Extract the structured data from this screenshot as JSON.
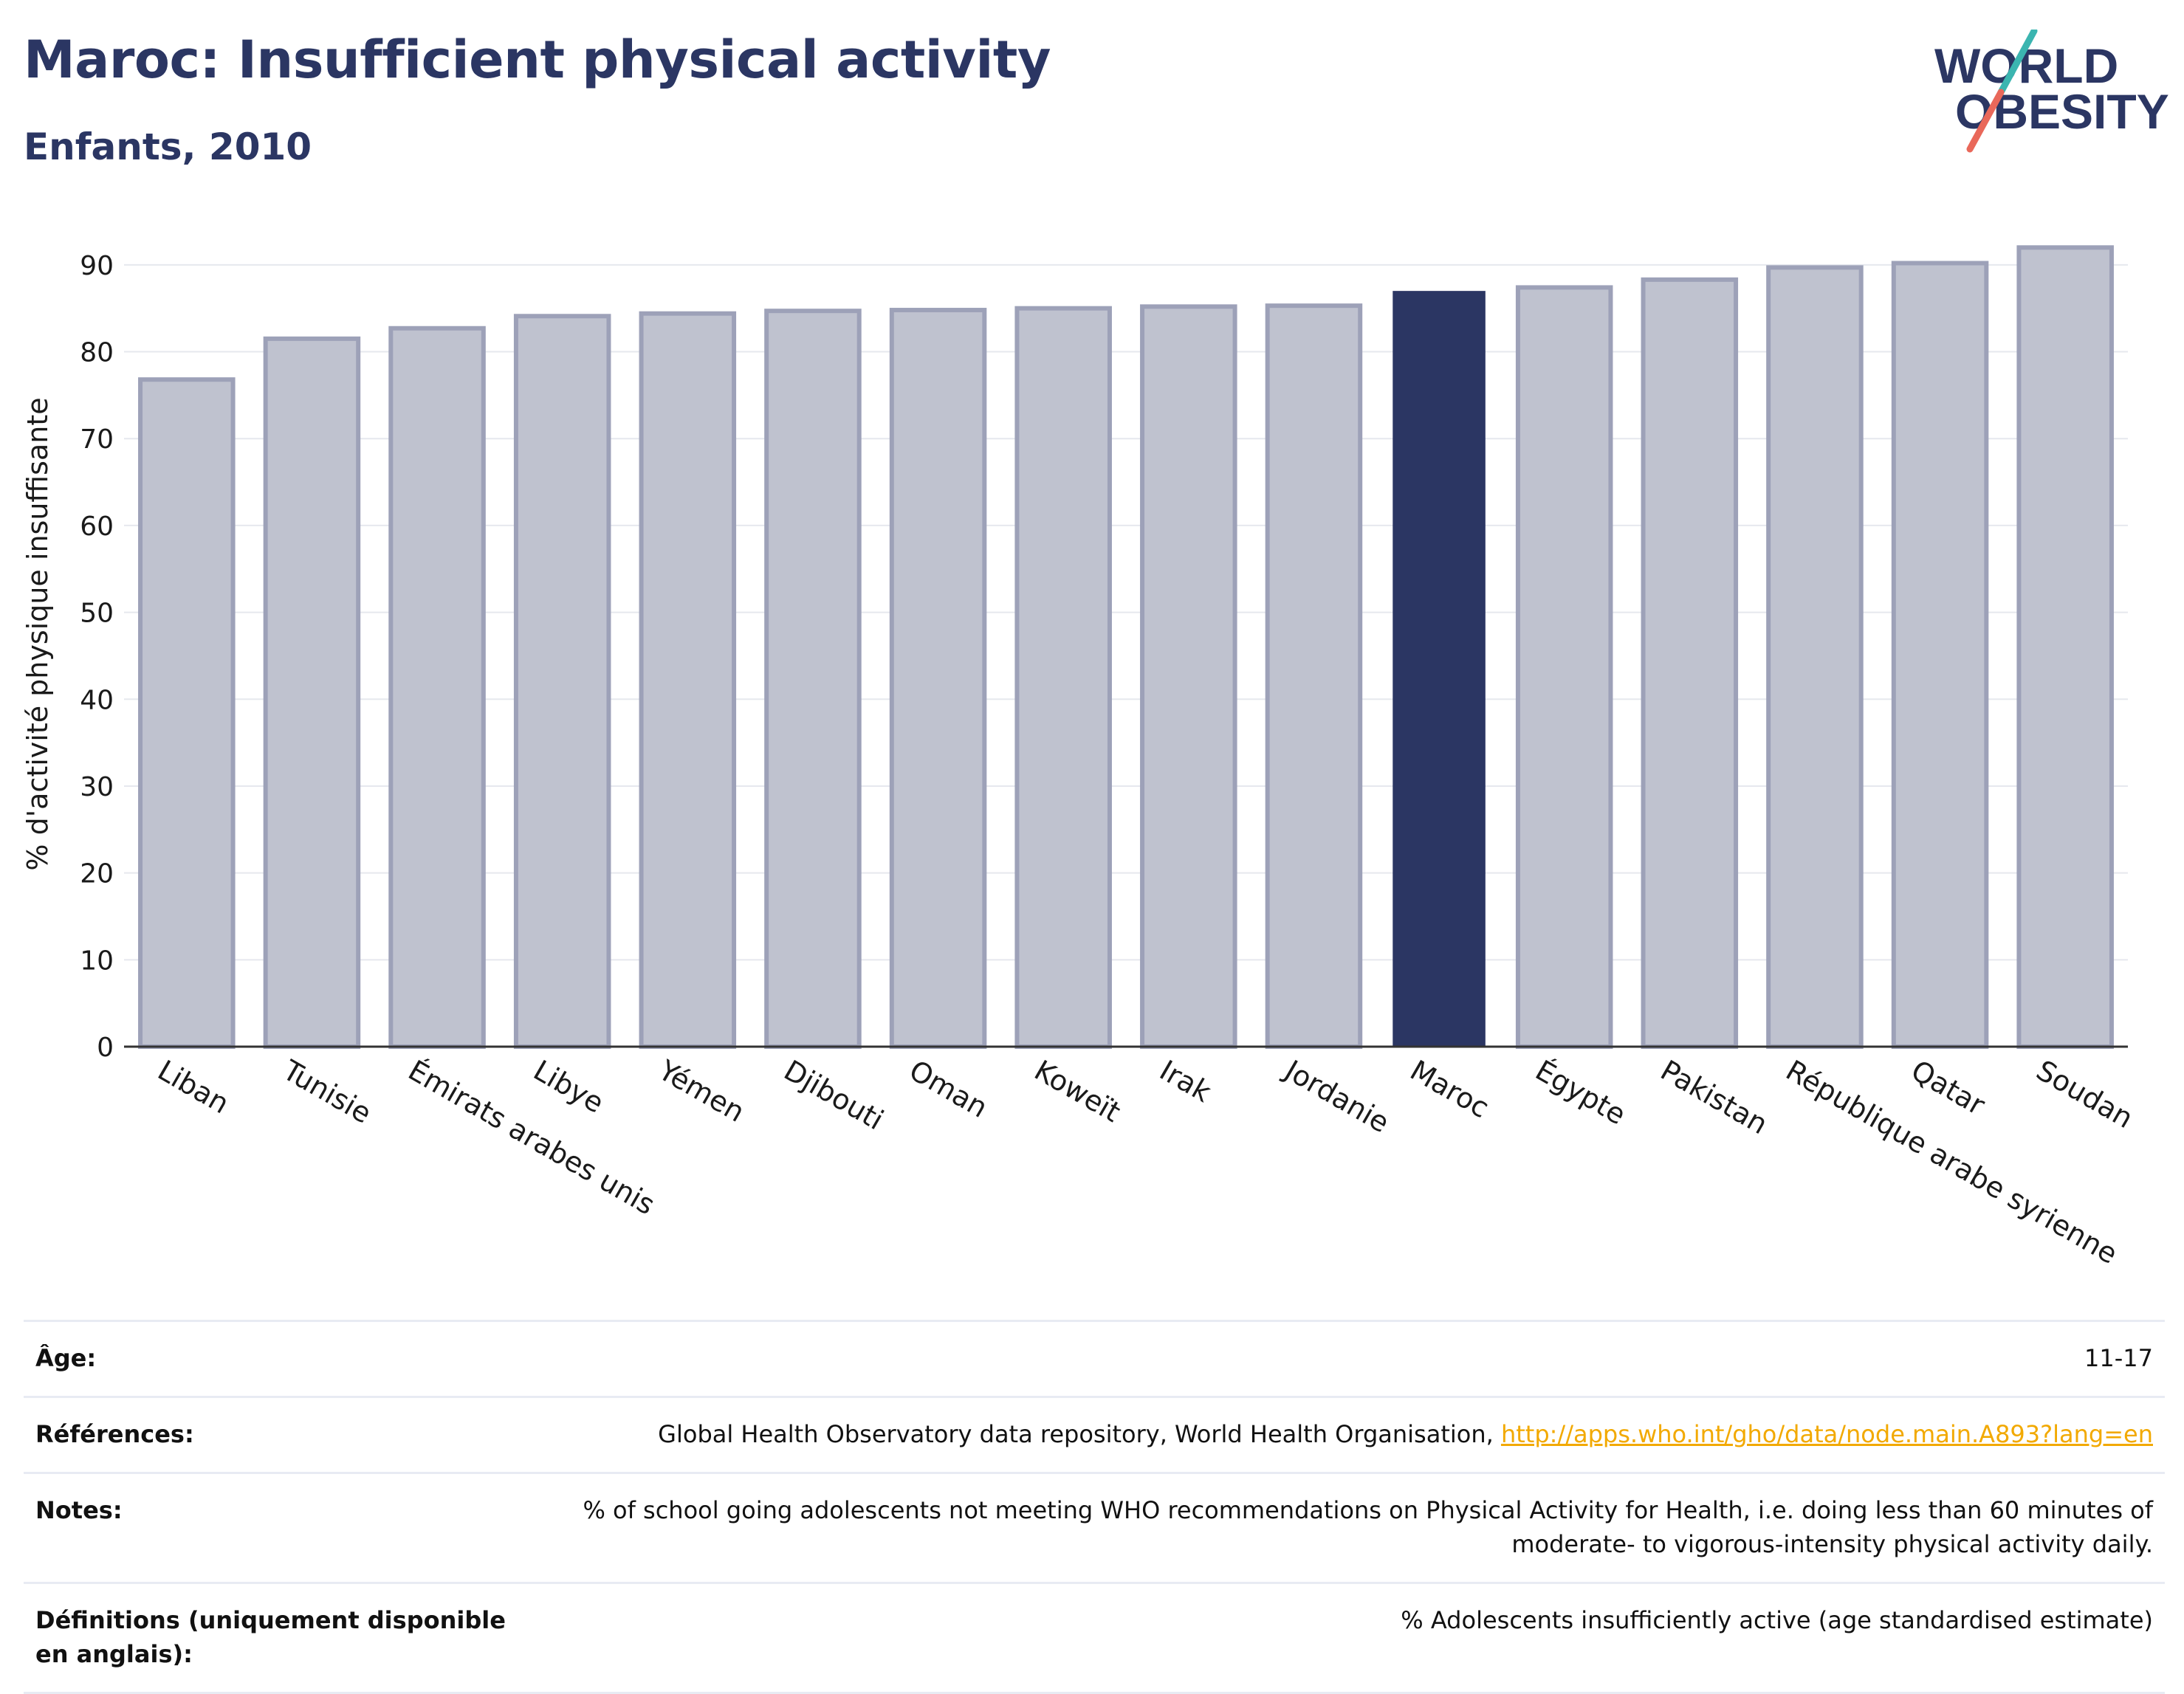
{
  "header": {
    "title": "Maroc: Insufficient physical activity",
    "subtitle": "Enfants, 2010"
  },
  "logo": {
    "line1": "WORLD",
    "line2": "OBESITY",
    "accent_teal": "#3bb5b0",
    "accent_red": "#e9685a",
    "text_color": "#2b3663"
  },
  "chart_data": {
    "type": "bar",
    "title": "Maroc: Insufficient physical activity",
    "subtitle": "Enfants, 2010",
    "xlabel": "",
    "ylabel": "% d'activité physique insuffisante",
    "ylim": [
      0,
      95
    ],
    "yticks": [
      0,
      10,
      20,
      30,
      40,
      50,
      60,
      70,
      80,
      90
    ],
    "grid": true,
    "highlight": "Maroc",
    "colors": {
      "highlight": "#2b3663",
      "other": "#bfc2cf",
      "other_border": "#9da1b8"
    },
    "categories": [
      "Liban",
      "Tunisie",
      "Émirats arabes unis",
      "Libye",
      "Yémen",
      "Djibouti",
      "Oman",
      "Koweït",
      "Irak",
      "Jordanie",
      "Maroc",
      "Égypte",
      "Pakistan",
      "République arabe syrienne",
      "Qatar",
      "Soudan"
    ],
    "values": [
      76.8,
      81.5,
      82.7,
      84.1,
      84.4,
      84.7,
      84.8,
      85.0,
      85.2,
      85.3,
      87.0,
      87.4,
      88.3,
      89.7,
      90.2,
      92.0
    ]
  },
  "info": [
    {
      "label": "Âge:",
      "value": "11-17",
      "link": ""
    },
    {
      "label": "Références:",
      "value": "Global Health Observatory data repository, World Health Organisation, ",
      "link": "http://apps.who.int/gho/data/node.main.A893?lang=en"
    },
    {
      "label": "Notes:",
      "value": "% of school going adolescents not meeting WHO recommendations on Physical Activity for Health, i.e. doing less than 60 minutes of moderate- to vigorous-intensity physical activity daily.",
      "link": ""
    },
    {
      "label": "Définitions (uniquement disponible en anglais):",
      "value": "% Adolescents insufficiently active (age standardised estimate)",
      "link": ""
    }
  ]
}
